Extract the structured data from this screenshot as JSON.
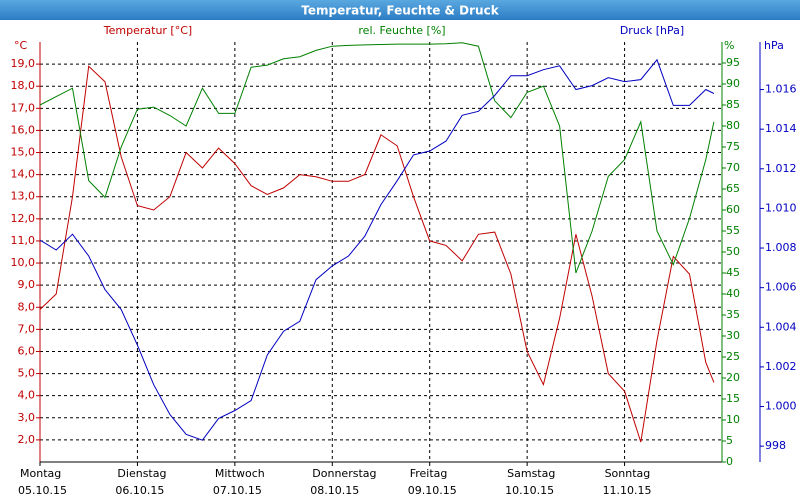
{
  "chart_data": {
    "type": "line",
    "title": "Temperatur, Feuchte & Druck",
    "x": [
      0,
      4,
      8,
      12,
      16,
      20,
      24,
      28,
      32,
      36,
      40,
      44,
      48,
      52,
      56,
      60,
      64,
      68,
      72,
      76,
      80,
      84,
      88,
      92,
      96,
      100,
      104,
      108,
      112,
      116,
      120,
      124,
      128,
      132,
      136,
      140,
      144,
      148,
      152,
      156,
      160,
      164,
      166
    ],
    "xlim": [
      0,
      168
    ],
    "xticks": [
      {
        "value": 0,
        "label": "Montag"
      },
      {
        "value": 24,
        "label": "Dienstag"
      },
      {
        "value": 48,
        "label": "Mittwoch"
      },
      {
        "value": 72,
        "label": "Donnerstag"
      },
      {
        "value": 96,
        "label": "Freitag"
      },
      {
        "value": 120,
        "label": "Samstag"
      },
      {
        "value": 144,
        "label": "Sonntag"
      }
    ],
    "xtick_dates": [
      "05.10.15",
      "06.10.15",
      "07.10.15",
      "08.10.15",
      "09.10.15",
      "10.10.15",
      "11.10.15"
    ],
    "ylim": [
      1,
      20
    ],
    "y_unit": "°C",
    "yticks": [
      {
        "value": 2,
        "label": "2,0"
      },
      {
        "value": 3,
        "label": "3,0"
      },
      {
        "value": 4,
        "label": "4,0"
      },
      {
        "value": 5,
        "label": "5,0"
      },
      {
        "value": 6,
        "label": "6,0"
      },
      {
        "value": 7,
        "label": "7,0"
      },
      {
        "value": 8,
        "label": "8,0"
      },
      {
        "value": 9,
        "label": "9,0"
      },
      {
        "value": 10,
        "label": "10,0"
      },
      {
        "value": 11,
        "label": "11,0"
      },
      {
        "value": 12,
        "label": "12,0"
      },
      {
        "value": 13,
        "label": "13,0"
      },
      {
        "value": 14,
        "label": "14,0"
      },
      {
        "value": 15,
        "label": "15,0"
      },
      {
        "value": 16,
        "label": "16,0"
      },
      {
        "value": 17,
        "label": "17,0"
      },
      {
        "value": 18,
        "label": "18,0"
      },
      {
        "value": 19,
        "label": "19,0"
      }
    ],
    "y2lim": [
      0,
      100
    ],
    "y2_unit": "%",
    "y2ticks": [
      0,
      5,
      10,
      15,
      20,
      25,
      30,
      35,
      40,
      45,
      50,
      55,
      60,
      65,
      70,
      75,
      80,
      85,
      90,
      95
    ],
    "y3lim": [
      997.2,
      1018.4
    ],
    "y3_unit": "hPa",
    "y3ticks": [
      998,
      {
        "value": 1000,
        "label": "1.000"
      },
      {
        "value": 1002,
        "label": "1.002"
      },
      {
        "value": 1004,
        "label": "1.004"
      },
      {
        "value": 1006,
        "label": "1.006"
      },
      {
        "value": 1008,
        "label": "1.008"
      },
      {
        "value": 1010,
        "label": "1.010"
      },
      {
        "value": 1012,
        "label": "1.012"
      },
      {
        "value": 1014,
        "label": "1.014"
      },
      {
        "value": 1016,
        "label": "1.016"
      }
    ],
    "grid": true,
    "series": [
      {
        "name": "Temperatur [°C]",
        "color": "#c00000",
        "axis": "y",
        "values": [
          7.9,
          8.6,
          13,
          18.9,
          18.2,
          14.8,
          12.6,
          12.4,
          13,
          15,
          14.3,
          15.2,
          14.5,
          13.5,
          13.1,
          13.4,
          14,
          13.9,
          13.7,
          13.7,
          14,
          15.8,
          15.3,
          13,
          11,
          10.8,
          10.1,
          11.3,
          11.4,
          9.5,
          6,
          4.5,
          7.5,
          11.3,
          8.5,
          5,
          4.2,
          1.9,
          6.5,
          10.3,
          9.5,
          5.5,
          4.6
        ]
      },
      {
        "name": "rel. Feuchte [%]",
        "color": "#008000",
        "axis": "y2",
        "values": [
          85,
          87,
          89,
          67,
          63,
          75,
          84,
          84.5,
          82.5,
          80,
          89,
          83,
          83,
          94,
          94.5,
          96,
          96.5,
          98,
          99,
          99.2,
          99.3,
          99.4,
          99.5,
          99.5,
          99.5,
          99.6,
          99.8,
          99,
          86,
          82,
          88,
          89.5,
          80,
          45,
          55,
          68,
          72,
          81,
          55,
          47,
          58,
          72,
          81
        ]
      },
      {
        "name": "Druck [hPa]",
        "color": "#0000c0",
        "axis": "y3",
        "values": [
          1008.4,
          1007.9,
          1008.7,
          1007.6,
          1005.9,
          1004.9,
          1003.1,
          1001.1,
          999.6,
          998.6,
          998.3,
          999.4,
          999.8,
          1000.3,
          1002.6,
          1003.8,
          1004.3,
          1006.4,
          1007.1,
          1007.6,
          1008.6,
          1010.2,
          1011.4,
          1012.7,
          1012.9,
          1013.4,
          1014.7,
          1014.9,
          1015.7,
          1016.7,
          1016.7,
          1017,
          1017.2,
          1016,
          1016.2,
          1016.6,
          1016.4,
          1016.5,
          1017.5,
          1015.2,
          1015.2,
          1016,
          1015.8
        ]
      }
    ]
  }
}
